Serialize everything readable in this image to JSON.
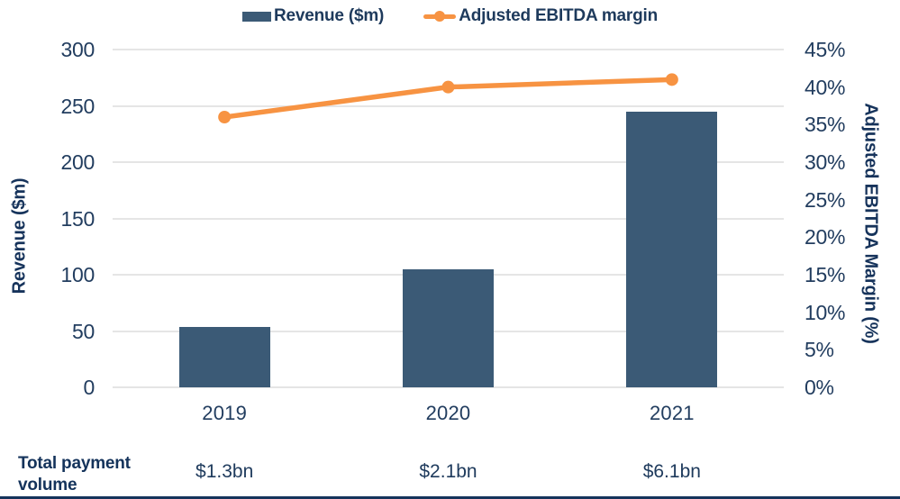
{
  "legend": {
    "items": [
      {
        "label": "Revenue ($m)",
        "marker": "square",
        "color": "#3B5A76"
      },
      {
        "label": "Adjusted EBITDA margin",
        "marker": "line-dot",
        "color": "#F79342"
      }
    ]
  },
  "chart_data": {
    "type": "combo-bar-line",
    "categories": [
      "2019",
      "2020",
      "2021"
    ],
    "series": [
      {
        "name": "Revenue ($m)",
        "type": "bar",
        "axis": "left",
        "values": [
          54,
          105,
          245
        ],
        "color": "#3B5A76"
      },
      {
        "name": "Adjusted EBITDA margin",
        "type": "line",
        "axis": "right",
        "values": [
          36,
          40,
          41
        ],
        "unit": "%",
        "color": "#F79342"
      }
    ],
    "left_axis": {
      "title": "Revenue ($m)",
      "min": 0,
      "max": 300,
      "step": 50
    },
    "right_axis": {
      "title": "Adjusted EBITDA Margin (%)",
      "min": 0,
      "max": 45,
      "step": 5,
      "suffix": "%"
    },
    "grid": true,
    "gridline_color": "#E5E5E5",
    "legend_position": "top"
  },
  "footer": {
    "label": "Total payment volume",
    "values": [
      "$1.3bn",
      "$2.1bn",
      "$6.1bn"
    ]
  },
  "colors": {
    "bar": "#3B5A76",
    "line": "#F79342",
    "tick_text": "#223D5F",
    "title_text": "#16335B",
    "bottom_rule": "#14335B"
  }
}
